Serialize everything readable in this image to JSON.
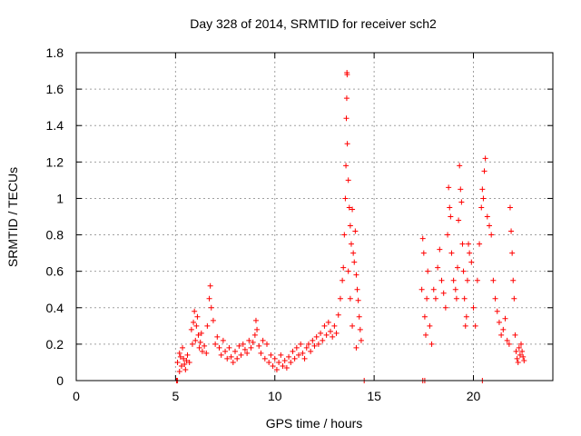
{
  "chart_data": {
    "type": "scatter",
    "title": "Day 328 of 2014, SRMTID for receiver sch2",
    "xlabel": "GPS time / hours",
    "ylabel": "SRMTID / TECUs",
    "xlim": [
      0,
      24
    ],
    "ylim": [
      0,
      1.8
    ],
    "xticks": [
      0,
      5,
      10,
      15,
      20
    ],
    "yticks": [
      0,
      0.2,
      0.4,
      0.6,
      0.8,
      1,
      1.2,
      1.4,
      1.6,
      1.8
    ],
    "xtick_labels": [
      "0",
      "5",
      "10",
      "15",
      "20"
    ],
    "ytick_labels": [
      "0",
      "0.2",
      "0.4",
      "0.6",
      "0.8",
      "1",
      "1.2",
      "1.4",
      "1.6",
      "1.8"
    ],
    "grid": true,
    "marker": "+",
    "color": "#ff0000",
    "series": [
      {
        "name": "SRMTID",
        "points": [
          [
            5.05,
            0.0
          ],
          [
            5.1,
            0.0
          ],
          [
            14.5,
            0.0
          ],
          [
            17.45,
            0.0
          ],
          [
            17.55,
            0.0
          ],
          [
            20.45,
            0.0
          ],
          [
            5.1,
            0.1
          ],
          [
            5.2,
            0.15
          ],
          [
            5.3,
            0.08
          ],
          [
            5.4,
            0.12
          ],
          [
            5.5,
            0.06
          ],
          [
            5.6,
            0.14
          ],
          [
            5.2,
            0.05
          ],
          [
            5.35,
            0.18
          ],
          [
            5.45,
            0.09
          ],
          [
            5.55,
            0.11
          ],
          [
            5.7,
            0.1
          ],
          [
            5.25,
            0.13
          ],
          [
            5.8,
            0.28
          ],
          [
            5.9,
            0.32
          ],
          [
            6.0,
            0.22
          ],
          [
            6.1,
            0.35
          ],
          [
            6.2,
            0.18
          ],
          [
            6.3,
            0.26
          ],
          [
            5.85,
            0.2
          ],
          [
            5.95,
            0.38
          ],
          [
            6.05,
            0.3
          ],
          [
            6.15,
            0.25
          ],
          [
            6.25,
            0.21
          ],
          [
            6.35,
            0.16
          ],
          [
            6.45,
            0.19
          ],
          [
            6.55,
            0.15
          ],
          [
            6.6,
            0.3
          ],
          [
            6.7,
            0.45
          ],
          [
            6.75,
            0.52
          ],
          [
            6.8,
            0.4
          ],
          [
            6.9,
            0.33
          ],
          [
            7.0,
            0.2
          ],
          [
            7.1,
            0.24
          ],
          [
            7.2,
            0.18
          ],
          [
            7.3,
            0.14
          ],
          [
            7.4,
            0.22
          ],
          [
            7.5,
            0.16
          ],
          [
            7.6,
            0.12
          ],
          [
            7.7,
            0.18
          ],
          [
            7.8,
            0.13
          ],
          [
            7.9,
            0.1
          ],
          [
            8.0,
            0.16
          ],
          [
            8.1,
            0.12
          ],
          [
            8.2,
            0.19
          ],
          [
            8.3,
            0.14
          ],
          [
            8.4,
            0.2
          ],
          [
            8.5,
            0.17
          ],
          [
            8.6,
            0.15
          ],
          [
            8.7,
            0.22
          ],
          [
            8.8,
            0.18
          ],
          [
            8.9,
            0.21
          ],
          [
            9.0,
            0.25
          ],
          [
            9.05,
            0.33
          ],
          [
            9.1,
            0.28
          ],
          [
            9.2,
            0.19
          ],
          [
            9.3,
            0.15
          ],
          [
            9.4,
            0.22
          ],
          [
            9.5,
            0.12
          ],
          [
            9.6,
            0.2
          ],
          [
            9.7,
            0.1
          ],
          [
            9.8,
            0.14
          ],
          [
            9.9,
            0.08
          ],
          [
            10.0,
            0.12
          ],
          [
            10.1,
            0.06
          ],
          [
            10.2,
            0.1
          ],
          [
            10.3,
            0.14
          ],
          [
            10.4,
            0.08
          ],
          [
            10.5,
            0.11
          ],
          [
            10.6,
            0.07
          ],
          [
            10.7,
            0.13
          ],
          [
            10.8,
            0.1
          ],
          [
            10.9,
            0.16
          ],
          [
            11.0,
            0.12
          ],
          [
            11.1,
            0.18
          ],
          [
            11.2,
            0.14
          ],
          [
            11.3,
            0.2
          ],
          [
            11.4,
            0.15
          ],
          [
            11.5,
            0.12
          ],
          [
            11.6,
            0.18
          ],
          [
            11.7,
            0.2
          ],
          [
            11.8,
            0.16
          ],
          [
            11.9,
            0.22
          ],
          [
            12.0,
            0.19
          ],
          [
            12.1,
            0.24
          ],
          [
            12.2,
            0.2
          ],
          [
            12.3,
            0.26
          ],
          [
            12.4,
            0.22
          ],
          [
            12.5,
            0.3
          ],
          [
            12.6,
            0.25
          ],
          [
            12.7,
            0.32
          ],
          [
            12.8,
            0.27
          ],
          [
            12.9,
            0.24
          ],
          [
            13.0,
            0.3
          ],
          [
            13.1,
            0.26
          ],
          [
            13.2,
            0.36
          ],
          [
            13.3,
            0.45
          ],
          [
            13.4,
            0.55
          ],
          [
            13.45,
            0.62
          ],
          [
            13.5,
            0.8
          ],
          [
            13.55,
            1.0
          ],
          [
            13.58,
            1.18
          ],
          [
            13.6,
            1.44
          ],
          [
            13.62,
            1.55
          ],
          [
            13.63,
            1.69
          ],
          [
            13.64,
            1.68
          ],
          [
            13.65,
            1.3
          ],
          [
            13.7,
            1.1
          ],
          [
            13.75,
            0.95
          ],
          [
            13.8,
            0.85
          ],
          [
            13.85,
            0.75
          ],
          [
            13.9,
            0.94
          ],
          [
            13.95,
            0.7
          ],
          [
            14.0,
            0.65
          ],
          [
            14.05,
            0.82
          ],
          [
            14.1,
            0.58
          ],
          [
            14.15,
            0.5
          ],
          [
            14.2,
            0.44
          ],
          [
            14.25,
            0.35
          ],
          [
            14.3,
            0.28
          ],
          [
            14.35,
            0.22
          ],
          [
            14.1,
            0.18
          ],
          [
            13.7,
            0.6
          ],
          [
            13.8,
            0.45
          ],
          [
            13.9,
            0.3
          ],
          [
            17.4,
            0.5
          ],
          [
            17.45,
            0.78
          ],
          [
            17.5,
            0.7
          ],
          [
            17.55,
            0.35
          ],
          [
            17.6,
            0.25
          ],
          [
            17.65,
            0.45
          ],
          [
            17.7,
            0.6
          ],
          [
            17.8,
            0.3
          ],
          [
            17.9,
            0.2
          ],
          [
            18.0,
            0.5
          ],
          [
            18.1,
            0.45
          ],
          [
            18.2,
            0.62
          ],
          [
            18.3,
            0.72
          ],
          [
            18.4,
            0.55
          ],
          [
            18.5,
            0.48
          ],
          [
            18.6,
            0.4
          ],
          [
            18.7,
            0.8
          ],
          [
            18.75,
            1.06
          ],
          [
            18.8,
            0.95
          ],
          [
            18.85,
            0.9
          ],
          [
            18.9,
            0.7
          ],
          [
            19.0,
            0.55
          ],
          [
            19.1,
            0.5
          ],
          [
            19.15,
            0.45
          ],
          [
            19.2,
            0.62
          ],
          [
            19.25,
            0.88
          ],
          [
            19.3,
            1.18
          ],
          [
            19.35,
            1.05
          ],
          [
            19.4,
            0.98
          ],
          [
            19.45,
            0.75
          ],
          [
            19.5,
            0.6
          ],
          [
            19.55,
            0.45
          ],
          [
            19.6,
            0.3
          ],
          [
            19.65,
            0.35
          ],
          [
            19.7,
            0.55
          ],
          [
            19.75,
            0.75
          ],
          [
            19.8,
            0.7
          ],
          [
            19.9,
            0.65
          ],
          [
            20.0,
            0.4
          ],
          [
            20.1,
            0.3
          ],
          [
            20.2,
            0.55
          ],
          [
            20.3,
            0.75
          ],
          [
            20.4,
            0.95
          ],
          [
            20.45,
            1.05
          ],
          [
            20.5,
            1.0
          ],
          [
            20.55,
            1.15
          ],
          [
            20.6,
            1.22
          ],
          [
            20.7,
            0.9
          ],
          [
            20.8,
            0.85
          ],
          [
            20.9,
            0.8
          ],
          [
            21.0,
            0.55
          ],
          [
            21.1,
            0.45
          ],
          [
            21.2,
            0.38
          ],
          [
            21.3,
            0.32
          ],
          [
            21.4,
            0.25
          ],
          [
            21.5,
            0.28
          ],
          [
            21.6,
            0.34
          ],
          [
            21.7,
            0.22
          ],
          [
            21.8,
            0.2
          ],
          [
            21.85,
            0.95
          ],
          [
            21.9,
            0.82
          ],
          [
            21.95,
            0.7
          ],
          [
            22.0,
            0.55
          ],
          [
            22.05,
            0.45
          ],
          [
            22.1,
            0.25
          ],
          [
            22.15,
            0.16
          ],
          [
            22.2,
            0.12
          ],
          [
            22.25,
            0.1
          ],
          [
            22.3,
            0.18
          ],
          [
            22.35,
            0.14
          ],
          [
            22.4,
            0.2
          ],
          [
            22.45,
            0.16
          ],
          [
            22.5,
            0.13
          ],
          [
            22.55,
            0.11
          ]
        ]
      }
    ]
  }
}
